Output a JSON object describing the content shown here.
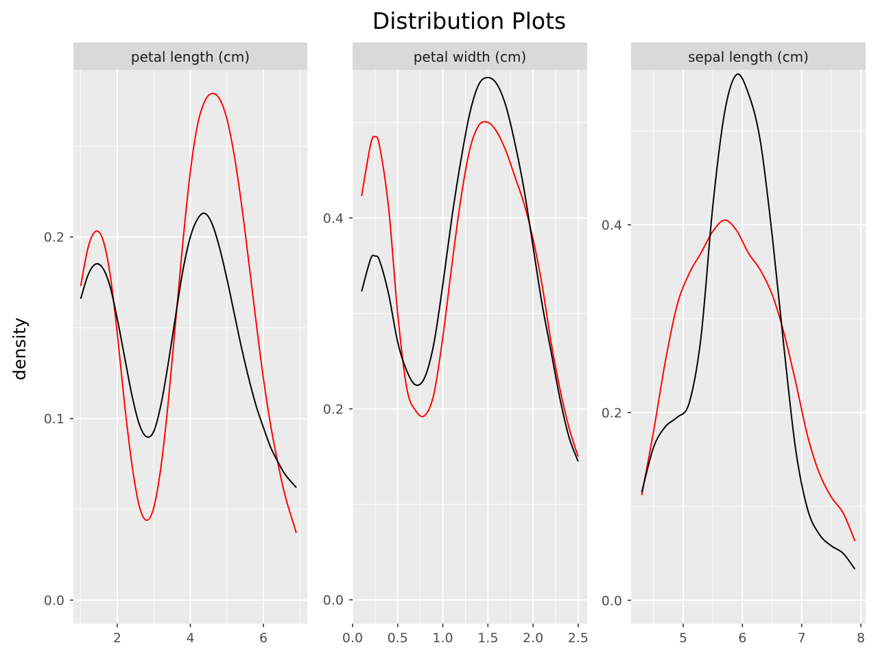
{
  "chart_data": {
    "type": "line",
    "title": "Distribution Plots",
    "ylabel": "density",
    "xlabel": "",
    "grid": true,
    "colors": {
      "series_a": "#ff0000",
      "series_b": "#000000"
    },
    "facets": [
      {
        "strip": "petal length (cm)",
        "xlim": [
          0.8,
          7.2
        ],
        "ylim": [
          -0.013,
          0.292
        ],
        "x_ticks": [
          2,
          4,
          6
        ],
        "x_tick_labels": [
          "2",
          "4",
          "6"
        ],
        "y_ticks": [
          0.0,
          0.1,
          0.2
        ],
        "y_tick_labels": [
          "0.0",
          "0.1",
          "0.2"
        ],
        "series": [
          {
            "color": "#ff0000",
            "x": [
              1.0,
              1.2,
              1.4,
              1.6,
              1.8,
              2.0,
              2.2,
              2.4,
              2.6,
              2.8,
              3.0,
              3.2,
              3.4,
              3.6,
              3.8,
              4.0,
              4.2,
              4.4,
              4.6,
              4.8,
              5.0,
              5.2,
              5.4,
              5.6,
              5.8,
              6.0,
              6.2,
              6.4,
              6.6,
              6.9
            ],
            "y": [
              0.173,
              0.194,
              0.203,
              0.199,
              0.18,
              0.147,
              0.108,
              0.075,
              0.052,
              0.044,
              0.051,
              0.074,
              0.11,
              0.154,
              0.198,
              0.236,
              0.262,
              0.275,
              0.279,
              0.276,
              0.265,
              0.245,
              0.218,
              0.186,
              0.153,
              0.122,
              0.096,
              0.075,
              0.057,
              0.037
            ]
          },
          {
            "color": "#000000",
            "x": [
              1.0,
              1.2,
              1.4,
              1.6,
              1.8,
              2.0,
              2.2,
              2.4,
              2.6,
              2.8,
              3.0,
              3.2,
              3.4,
              3.6,
              3.8,
              4.0,
              4.2,
              4.4,
              4.6,
              4.8,
              5.0,
              5.2,
              5.4,
              5.6,
              5.8,
              6.0,
              6.2,
              6.4,
              6.6,
              6.9
            ],
            "y": [
              0.166,
              0.179,
              0.185,
              0.183,
              0.173,
              0.155,
              0.134,
              0.113,
              0.097,
              0.09,
              0.093,
              0.108,
              0.131,
              0.157,
              0.182,
              0.2,
              0.21,
              0.213,
              0.207,
              0.194,
              0.177,
              0.158,
              0.139,
              0.122,
              0.107,
              0.095,
              0.084,
              0.076,
              0.069,
              0.062
            ]
          }
        ]
      },
      {
        "strip": "petal width (cm)",
        "xlim": [
          0.0,
          2.6
        ],
        "ylim": [
          -0.025,
          0.555
        ],
        "x_ticks": [
          0.0,
          0.5,
          1.0,
          1.5,
          2.0,
          2.5
        ],
        "x_tick_labels": [
          "0.0",
          "0.5",
          "1.0",
          "1.5",
          "2.0",
          "2.5"
        ],
        "y_ticks": [
          0.0,
          0.2,
          0.4
        ],
        "y_tick_labels": [
          "0.0",
          "0.2",
          "0.4"
        ],
        "series": [
          {
            "color": "#ff0000",
            "x": [
              0.1,
              0.2,
              0.25,
              0.3,
              0.4,
              0.5,
              0.6,
              0.7,
              0.8,
              0.9,
              1.0,
              1.1,
              1.2,
              1.3,
              1.4,
              1.5,
              1.6,
              1.7,
              1.8,
              1.9,
              2.0,
              2.1,
              2.2,
              2.3,
              2.4,
              2.5
            ],
            "y": [
              0.423,
              0.477,
              0.485,
              0.475,
              0.41,
              0.3,
              0.222,
              0.198,
              0.193,
              0.215,
              0.275,
              0.35,
              0.42,
              0.472,
              0.497,
              0.5,
              0.49,
              0.47,
              0.443,
              0.415,
              0.378,
              0.33,
              0.27,
              0.22,
              0.18,
              0.15
            ]
          },
          {
            "color": "#000000",
            "x": [
              0.1,
              0.2,
              0.25,
              0.3,
              0.4,
              0.5,
              0.6,
              0.7,
              0.8,
              0.9,
              1.0,
              1.1,
              1.2,
              1.3,
              1.4,
              1.5,
              1.6,
              1.7,
              1.8,
              1.9,
              2.0,
              2.1,
              2.2,
              2.3,
              2.4,
              2.5
            ],
            "y": [
              0.323,
              0.357,
              0.36,
              0.355,
              0.32,
              0.27,
              0.24,
              0.225,
              0.233,
              0.268,
              0.33,
              0.4,
              0.46,
              0.51,
              0.54,
              0.547,
              0.54,
              0.517,
              0.478,
              0.43,
              0.37,
              0.31,
              0.26,
              0.21,
              0.17,
              0.145
            ]
          }
        ]
      },
      {
        "strip": "sepal length (cm)",
        "xlim": [
          4.12,
          8.08
        ],
        "ylim": [
          -0.025,
          0.565
        ],
        "x_ticks": [
          5,
          6,
          7,
          8
        ],
        "x_tick_labels": [
          "5",
          "6",
          "7",
          "8"
        ],
        "y_ticks": [
          0.0,
          0.2,
          0.4
        ],
        "y_tick_labels": [
          "0.0",
          "0.2",
          "0.4"
        ],
        "series": [
          {
            "color": "#ff0000",
            "x": [
              4.3,
              4.5,
              4.7,
              4.9,
              5.1,
              5.3,
              5.5,
              5.7,
              5.9,
              6.1,
              6.3,
              6.5,
              6.7,
              6.9,
              7.1,
              7.3,
              7.5,
              7.7,
              7.9
            ],
            "y": [
              0.112,
              0.18,
              0.255,
              0.315,
              0.348,
              0.37,
              0.393,
              0.405,
              0.394,
              0.37,
              0.352,
              0.326,
              0.285,
              0.232,
              0.175,
              0.135,
              0.11,
              0.093,
              0.063
            ]
          },
          {
            "color": "#000000",
            "x": [
              4.3,
              4.5,
              4.7,
              4.9,
              5.1,
              5.3,
              5.5,
              5.7,
              5.9,
              6.1,
              6.3,
              6.5,
              6.7,
              6.9,
              7.1,
              7.3,
              7.5,
              7.7,
              7.9
            ],
            "y": [
              0.115,
              0.163,
              0.185,
              0.195,
              0.21,
              0.28,
              0.42,
              0.52,
              0.56,
              0.54,
              0.49,
              0.39,
              0.27,
              0.16,
              0.097,
              0.07,
              0.058,
              0.05,
              0.033
            ]
          }
        ]
      }
    ]
  }
}
